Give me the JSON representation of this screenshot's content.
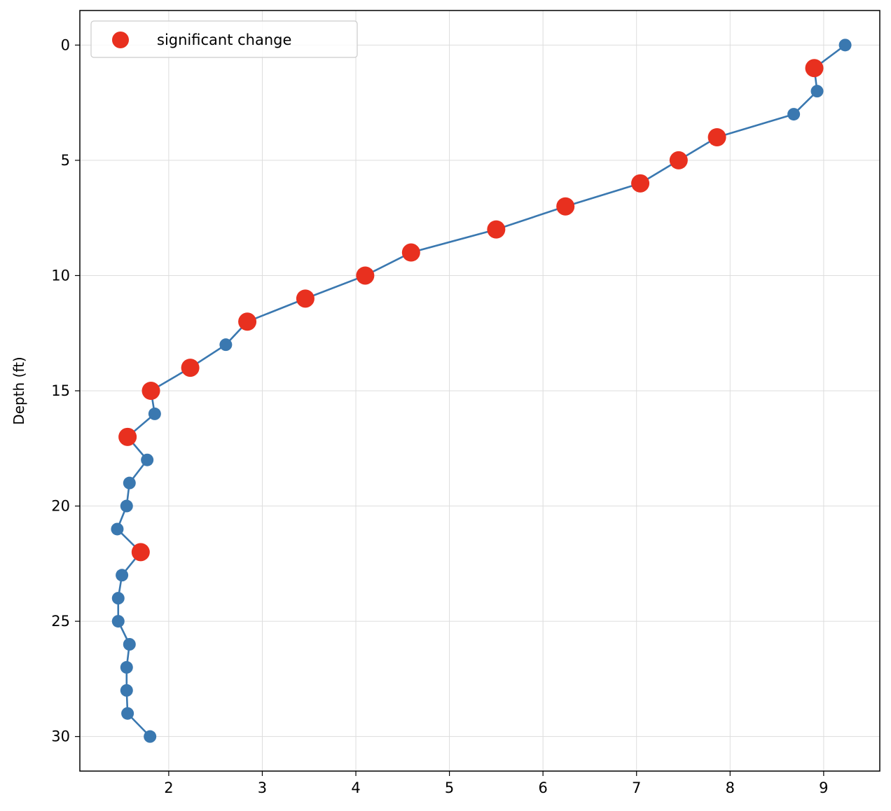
{
  "chart_data": {
    "type": "line",
    "title": "",
    "xlabel": "",
    "ylabel": "Depth (ft)",
    "xlim": [
      1.05,
      9.6
    ],
    "ylim": [
      31.5,
      -1.5
    ],
    "y_inverted": true,
    "xticks": [
      2,
      3,
      4,
      5,
      6,
      7,
      8,
      9
    ],
    "yticks": [
      0,
      5,
      10,
      15,
      20,
      25,
      30
    ],
    "grid": true,
    "legend_position": "upper-left",
    "line_color": "#3a78b0",
    "highlight_color": "#e8301f",
    "series": [
      {
        "x": [
          9.23,
          8.9,
          8.93,
          8.68,
          7.86,
          7.45,
          7.04,
          6.24,
          5.5,
          4.59,
          4.1,
          3.46,
          2.84,
          2.61,
          2.23,
          1.81,
          1.85,
          1.56,
          1.77,
          1.58,
          1.55,
          1.45,
          1.7,
          1.5,
          1.46,
          1.46,
          1.58,
          1.55,
          1.55,
          1.56,
          1.8
        ],
        "y": [
          0,
          1,
          2,
          3,
          4,
          5,
          6,
          7,
          8,
          9,
          10,
          11,
          12,
          13,
          14,
          15,
          16,
          17,
          18,
          19,
          20,
          21,
          22,
          23,
          24,
          25,
          26,
          27,
          28,
          29,
          30
        ]
      },
      {
        "name": "significant change",
        "x": [
          8.9,
          7.86,
          7.45,
          7.04,
          6.24,
          5.5,
          4.59,
          4.1,
          3.46,
          2.84,
          2.23,
          1.81,
          1.56,
          1.7
        ],
        "y": [
          1,
          4,
          5,
          6,
          7,
          8,
          9,
          10,
          11,
          12,
          14,
          15,
          17,
          22
        ]
      }
    ]
  }
}
